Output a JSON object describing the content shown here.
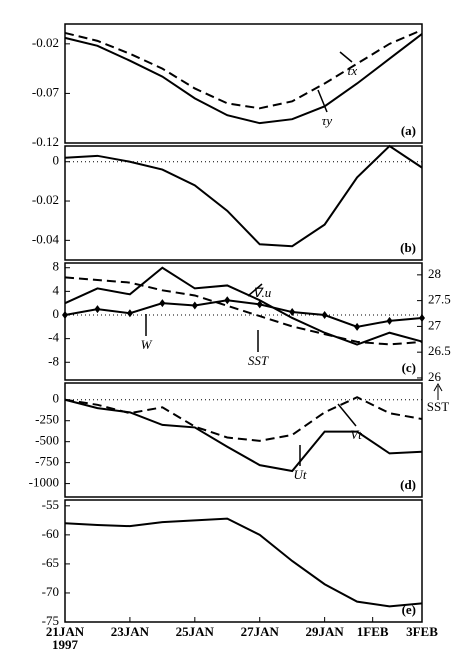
{
  "chart_data": [
    {
      "type": "line",
      "annotation": "(a)",
      "x": [
        0,
        1,
        2,
        3,
        4,
        5,
        6,
        7,
        8,
        9,
        10,
        11
      ],
      "xlim": [
        0,
        11
      ],
      "ylim": [
        -0.12,
        0.0
      ],
      "yticks": [
        -0.02,
        -0.07,
        -0.12
      ],
      "series": [
        {
          "name": "τx",
          "color": "#000",
          "style": "dashed",
          "values": [
            -0.009,
            -0.017,
            -0.03,
            -0.045,
            -0.065,
            -0.08,
            -0.085,
            -0.078,
            -0.06,
            -0.04,
            -0.02,
            -0.006
          ]
        },
        {
          "name": "τy",
          "color": "#000",
          "style": "solid",
          "values": [
            -0.014,
            -0.022,
            -0.037,
            -0.053,
            -0.075,
            -0.092,
            -0.1,
            -0.096,
            -0.083,
            -0.06,
            -0.035,
            -0.01
          ]
        }
      ]
    },
    {
      "type": "line",
      "annotation": "(b)",
      "zero_line": true,
      "x": [
        0,
        1,
        2,
        3,
        4,
        5,
        6,
        7,
        8,
        9,
        10,
        11
      ],
      "xlim": [
        0,
        11
      ],
      "ylim": [
        -0.05,
        0.008
      ],
      "yticks": [
        0,
        -0.02,
        -0.04
      ],
      "series": [
        {
          "color": "#000",
          "style": "solid",
          "values": [
            0.002,
            0.003,
            0,
            -0.004,
            -0.012,
            -0.025,
            -0.042,
            -0.043,
            -0.032,
            -0.008,
            0.008,
            -0.003
          ]
        }
      ]
    },
    {
      "type": "line",
      "annotation": "(c)",
      "zero_line": true,
      "y2label": "SST",
      "x": [
        0,
        1,
        2,
        3,
        4,
        5,
        6,
        7,
        8,
        9,
        10,
        11
      ],
      "xlim": [
        0,
        11
      ],
      "ylim": [
        -11,
        8.8
      ],
      "yticks": [
        8,
        4,
        0,
        -4,
        -8
      ],
      "y2lim": [
        25.96,
        28.23
      ],
      "y2ticks": [
        28,
        27.5,
        27,
        26.5,
        26
      ],
      "series": [
        {
          "name": "∇.u",
          "color": "#000",
          "style": "solid",
          "values": [
            2,
            4.5,
            3.5,
            8,
            4.5,
            5,
            2.5,
            -0.5,
            -3,
            -5,
            -3,
            -4.5
          ]
        },
        {
          "name": "W",
          "color": "#000",
          "style": "solid",
          "marker": "diamond",
          "values": [
            0,
            1,
            0.3,
            2,
            1.6,
            2.5,
            1.8,
            0.5,
            0,
            -2,
            -1,
            -0.5
          ]
        },
        {
          "name": "SST",
          "color": "#000",
          "style": "dashed",
          "axis": "y2",
          "values": [
            27.95,
            27.9,
            27.85,
            27.7,
            27.6,
            27.4,
            27.2,
            27.0,
            26.85,
            26.7,
            26.65,
            26.7
          ]
        }
      ]
    },
    {
      "type": "line",
      "annotation": "(d)",
      "zero_line": true,
      "x": [
        0,
        1,
        2,
        3,
        4,
        5,
        6,
        7,
        8,
        9,
        10,
        11
      ],
      "xlim": [
        0,
        11
      ],
      "ylim": [
        -1160,
        200
      ],
      "yticks": [
        0,
        -250,
        -500,
        -750,
        -1000
      ],
      "series": [
        {
          "name": "Ut",
          "color": "#000",
          "style": "solid",
          "values": [
            0,
            -100,
            -150,
            -300,
            -330,
            -560,
            -780,
            -850,
            -380,
            -380,
            -640,
            -620
          ]
        },
        {
          "name": "Vt",
          "color": "#000",
          "style": "dashed",
          "values": [
            0,
            -60,
            -160,
            -90,
            -320,
            -450,
            -490,
            -420,
            -150,
            30,
            -160,
            -230
          ]
        }
      ]
    },
    {
      "type": "line",
      "annotation": "(e)",
      "x": [
        0,
        1,
        2,
        3,
        4,
        5,
        6,
        7,
        8,
        9,
        10,
        11
      ],
      "xlim": [
        0,
        11
      ],
      "ylim": [
        -75,
        -54
      ],
      "yticks": [
        -55,
        -60,
        -65,
        -70,
        -75
      ],
      "xticks": [
        {
          "value": 0,
          "label": "21JAN"
        },
        {
          "value": 2,
          "label": "23JAN"
        },
        {
          "value": 4,
          "label": "25JAN"
        },
        {
          "value": 6,
          "label": "27JAN"
        },
        {
          "value": 8,
          "label": "29JAN"
        },
        {
          "value": 9.48,
          "label": "1FEB"
        },
        {
          "value": 11,
          "label": "3FEB"
        }
      ],
      "x_sublabel": "1997",
      "series": [
        {
          "color": "#000",
          "style": "solid",
          "values": [
            -58,
            -58.3,
            -58.5,
            -57.8,
            -57.5,
            -57.2,
            -60,
            -64.5,
            -68.5,
            -71.5,
            -72.3,
            -71.8
          ]
        }
      ]
    }
  ]
}
